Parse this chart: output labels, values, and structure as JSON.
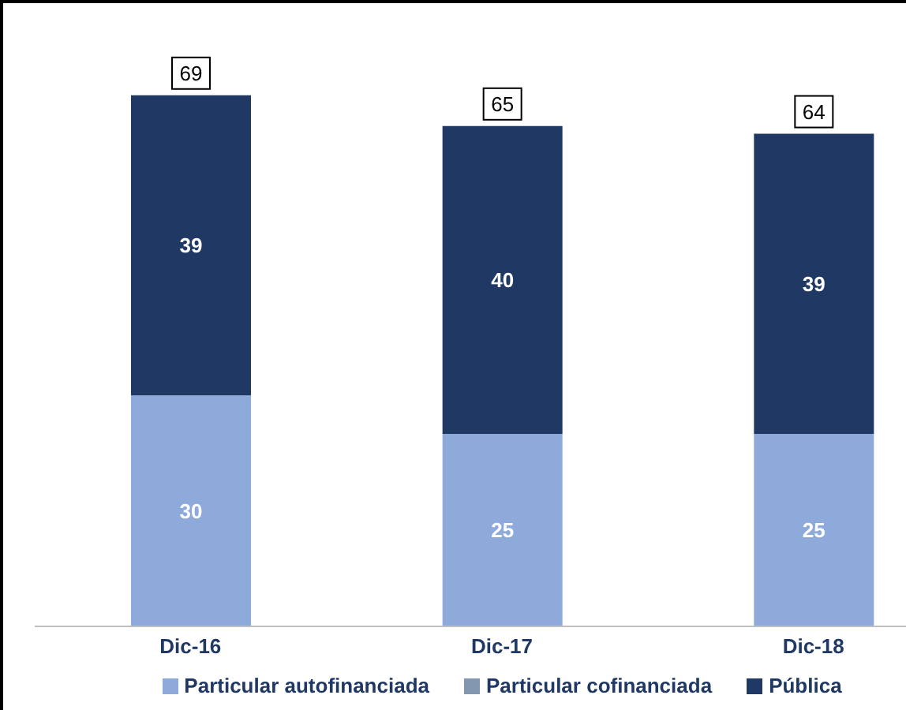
{
  "chart_data": {
    "type": "bar",
    "stacked": true,
    "categories": [
      "Dic-16",
      "Dic-17",
      "Dic-18"
    ],
    "series": [
      {
        "name": "Particular autofinanciada",
        "color": "#8eaadb",
        "values": [
          30,
          25,
          25
        ],
        "value_labels": [
          "30",
          "25",
          "25"
        ]
      },
      {
        "name": "Particular cofinanciada",
        "color": "#8497b0",
        "values": [
          0,
          0,
          0
        ],
        "value_labels": [
          null,
          null,
          null
        ]
      },
      {
        "name": "Pública",
        "color": "#1f3864",
        "values": [
          39,
          40,
          39
        ],
        "value_labels": [
          "39",
          "40",
          "39"
        ]
      }
    ],
    "totals": [
      "69",
      "65",
      "64"
    ],
    "legend": "bottom",
    "grid": false
  }
}
